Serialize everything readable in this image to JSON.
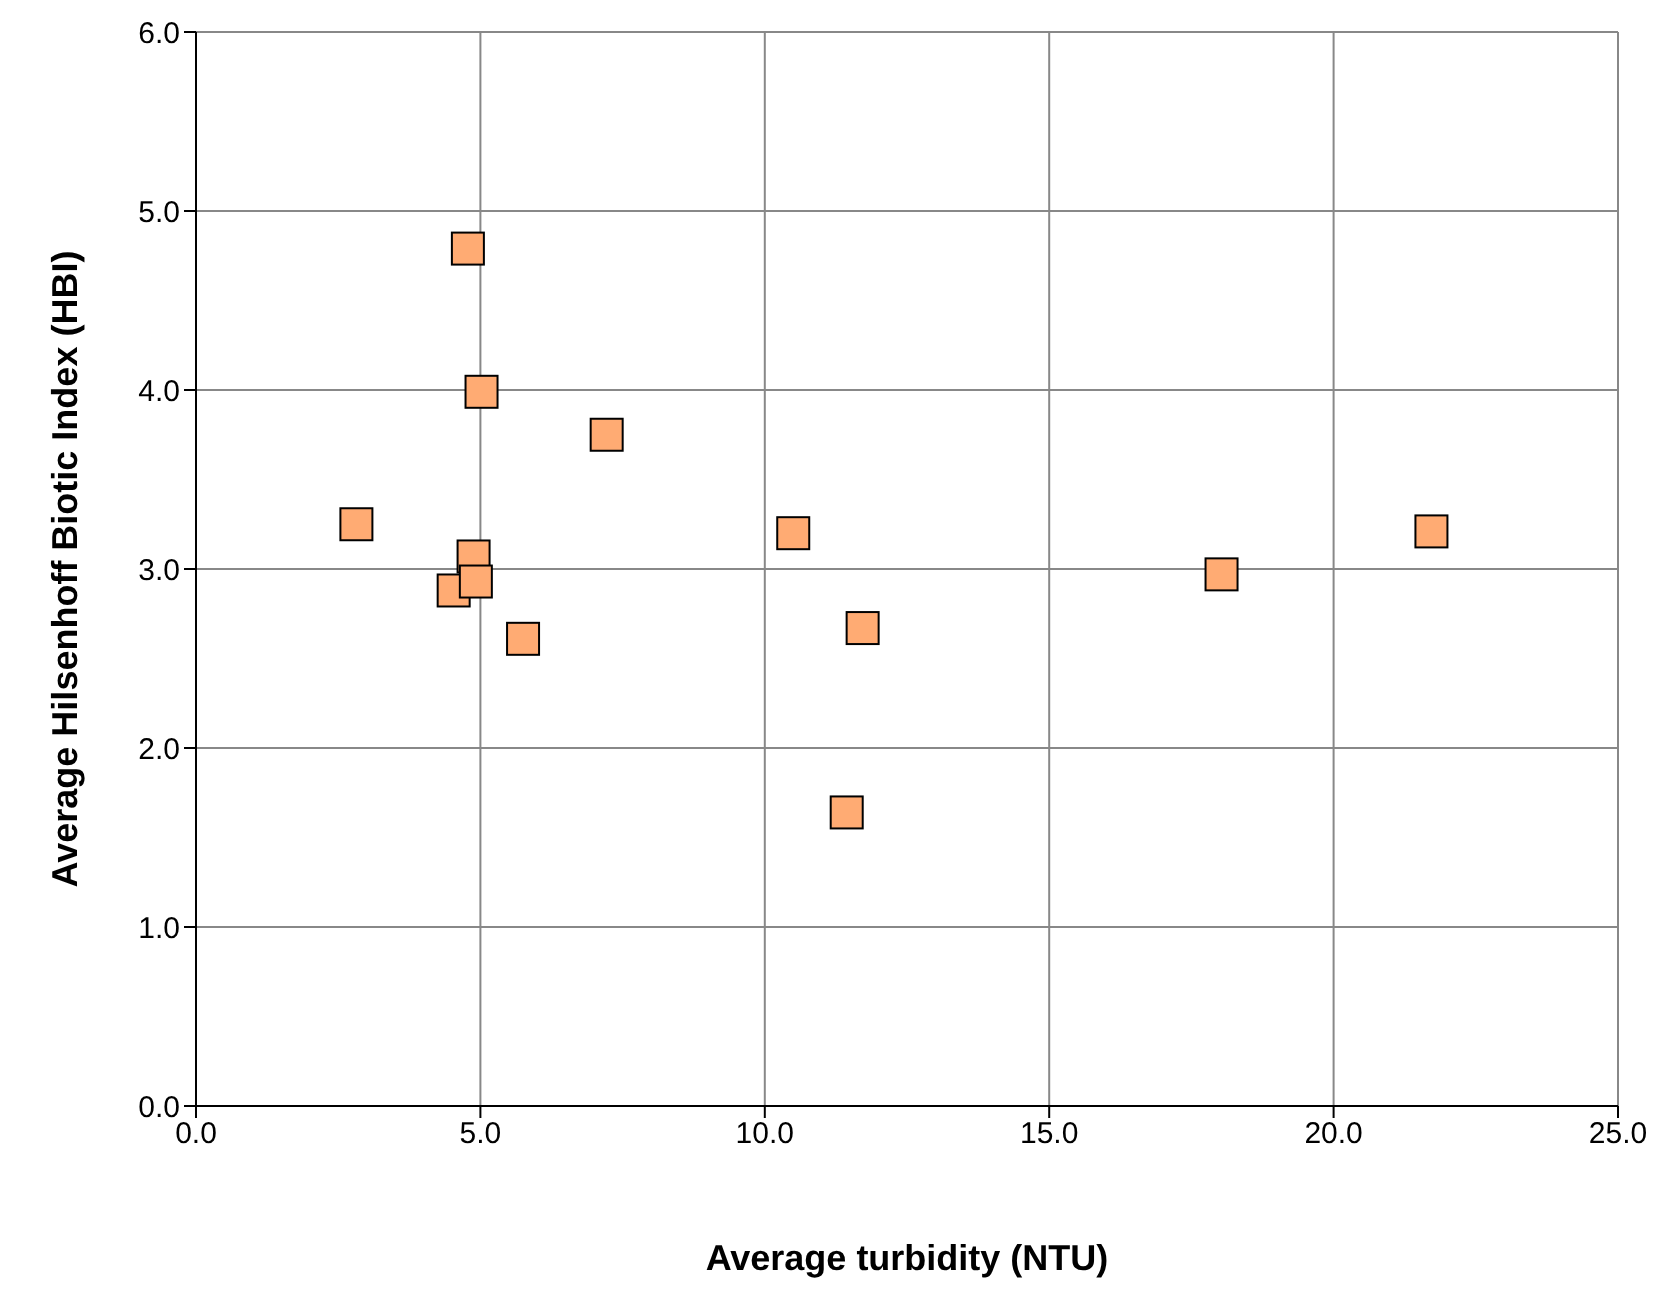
{
  "chart_data": {
    "type": "scatter",
    "xlabel": "Average turbidity (NTU)",
    "ylabel": "Average Hilsenhoff Biotic Index (HBI)",
    "x": [
      2.82,
      4.78,
      5.02,
      7.22,
      4.88,
      4.53,
      4.92,
      5.75,
      10.5,
      11.72,
      11.44,
      18.03,
      21.72
    ],
    "values": [
      3.25,
      4.79,
      3.99,
      3.75,
      3.07,
      2.88,
      2.93,
      2.61,
      3.2,
      2.67,
      1.64,
      2.97,
      3.21
    ],
    "color": "#ffab73",
    "marker": "square",
    "grid": true,
    "xlim": [
      0,
      25
    ],
    "xticks": [
      {
        "value": 0,
        "label": "0.0"
      },
      {
        "value": 5,
        "label": "5.0"
      },
      {
        "value": 10,
        "label": "10.0"
      },
      {
        "value": 15,
        "label": "15.0"
      },
      {
        "value": 20,
        "label": "20.0"
      },
      {
        "value": 25,
        "label": "25.0"
      }
    ],
    "ylim": [
      0,
      6
    ],
    "yticks": [
      {
        "value": 0,
        "label": "0.0"
      },
      {
        "value": 1,
        "label": "1.0"
      },
      {
        "value": 2,
        "label": "2.0"
      },
      {
        "value": 3,
        "label": "3.0"
      },
      {
        "value": 4,
        "label": "4.0"
      },
      {
        "value": 5,
        "label": "5.0"
      },
      {
        "value": 6,
        "label": "6.0"
      }
    ]
  }
}
